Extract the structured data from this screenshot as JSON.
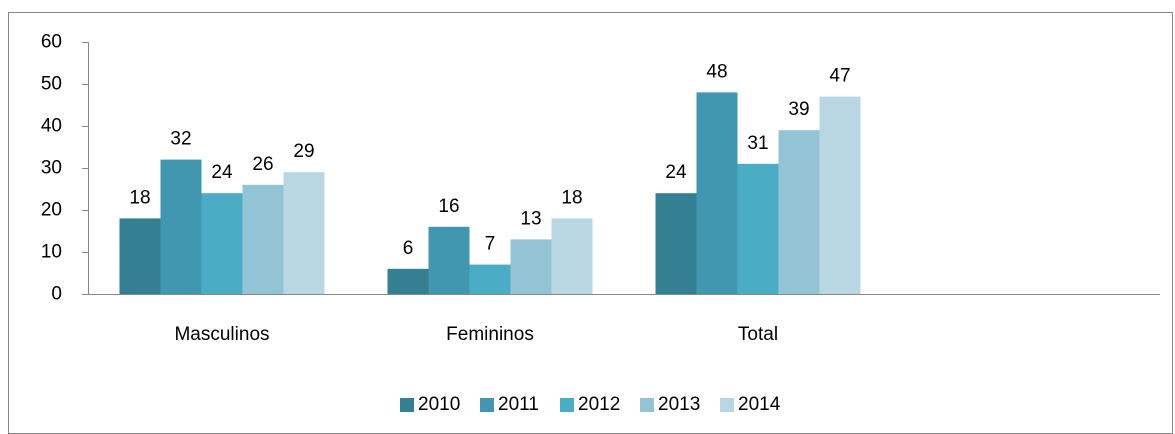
{
  "chart_data": {
    "type": "bar",
    "categories": [
      "Masculinos",
      "Femininos",
      "Total"
    ],
    "series": [
      {
        "name": "2010",
        "color": "#357f93",
        "values": [
          18,
          6,
          24
        ]
      },
      {
        "name": "2011",
        "color": "#4197b0",
        "values": [
          32,
          16,
          48
        ]
      },
      {
        "name": "2012",
        "color": "#4bacc6",
        "values": [
          24,
          7,
          31
        ]
      },
      {
        "name": "2013",
        "color": "#93c4d5",
        "values": [
          26,
          13,
          39
        ]
      },
      {
        "name": "2014",
        "color": "#b8d7e3",
        "values": [
          29,
          18,
          47
        ]
      }
    ],
    "ylim": [
      0,
      60
    ],
    "yticks": [
      0,
      10,
      20,
      30,
      40,
      50,
      60
    ],
    "grid": false,
    "legend": "bottom"
  }
}
